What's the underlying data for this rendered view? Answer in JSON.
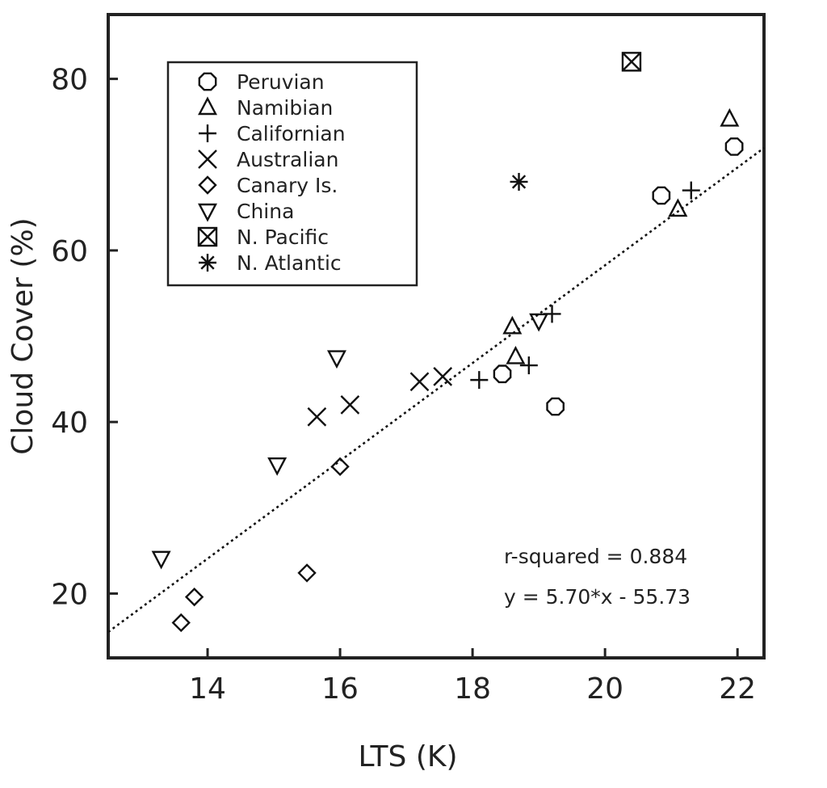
{
  "chart_data": {
    "type": "scatter",
    "xlabel": "LTS (K)",
    "ylabel": "Cloud Cover (%)",
    "xlim": [
      12.5,
      22.4
    ],
    "ylim": [
      12.5,
      87.5
    ],
    "xticks": [
      14,
      16,
      18,
      20,
      22
    ],
    "yticks": [
      20,
      40,
      60,
      80
    ],
    "grid": false,
    "legend_position": "top-left",
    "series": [
      {
        "name": "Peruvian",
        "marker": "octagon",
        "points": [
          [
            18.45,
            45.6
          ],
          [
            19.25,
            41.8
          ],
          [
            20.85,
            66.4
          ],
          [
            21.95,
            72.1
          ]
        ]
      },
      {
        "name": "Namibian",
        "marker": "triangle-up",
        "points": [
          [
            18.6,
            51.1
          ],
          [
            18.65,
            47.6
          ],
          [
            21.1,
            64.8
          ],
          [
            21.88,
            75.3
          ]
        ]
      },
      {
        "name": "Californian",
        "marker": "plus",
        "points": [
          [
            18.1,
            44.9
          ],
          [
            18.85,
            46.6
          ],
          [
            19.2,
            52.6
          ],
          [
            21.3,
            67.0
          ]
        ]
      },
      {
        "name": "Australian",
        "marker": "x",
        "points": [
          [
            15.65,
            40.6
          ],
          [
            16.15,
            42.0
          ],
          [
            17.2,
            44.7
          ],
          [
            17.55,
            45.3
          ]
        ]
      },
      {
        "name": "Canary Is.",
        "marker": "diamond",
        "points": [
          [
            13.6,
            16.6
          ],
          [
            13.8,
            19.6
          ],
          [
            15.5,
            22.4
          ],
          [
            16.0,
            34.8
          ]
        ]
      },
      {
        "name": "China",
        "marker": "triangle-down",
        "points": [
          [
            13.3,
            24.1
          ],
          [
            15.05,
            35.0
          ],
          [
            15.95,
            47.5
          ],
          [
            19.0,
            51.8
          ]
        ]
      },
      {
        "name": "N. Pacific",
        "marker": "boxed-x",
        "points": [
          [
            20.4,
            82.0
          ]
        ]
      },
      {
        "name": "N. Atlantic",
        "marker": "asterisk",
        "points": [
          [
            18.7,
            68.0
          ]
        ]
      }
    ],
    "fit_line": {
      "slope": 5.7,
      "intercept": -55.73,
      "style": "dotted"
    },
    "annotations": [
      "r-squared = 0.884",
      "y = 5.70*x - 55.73"
    ]
  }
}
